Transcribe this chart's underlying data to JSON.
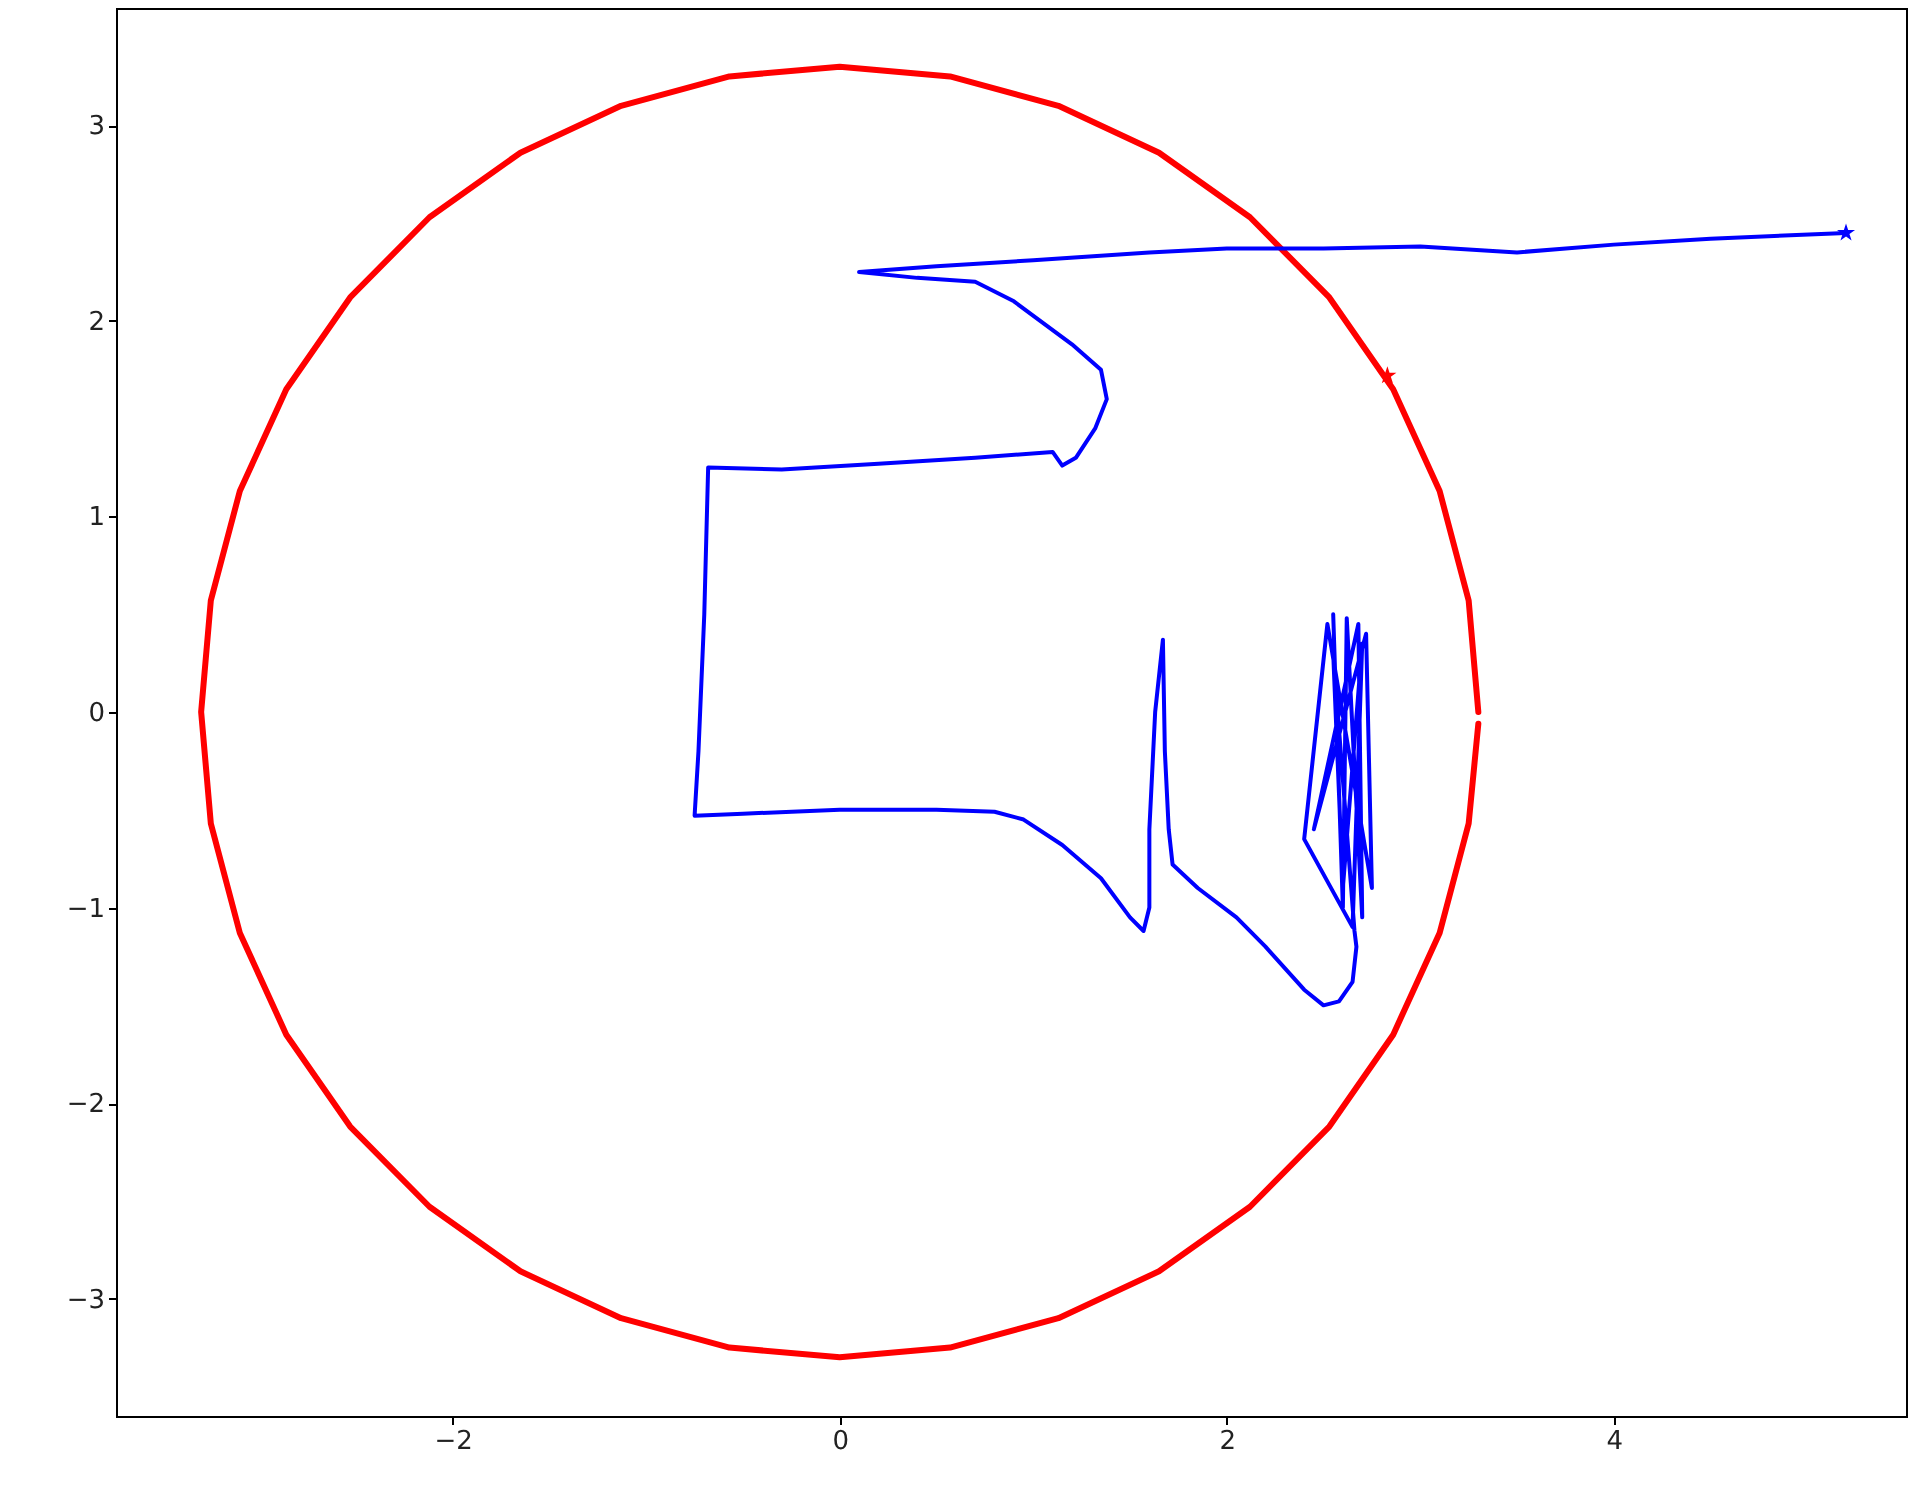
{
  "chart_data": {
    "type": "line",
    "xlim": [
      -3.74,
      5.51
    ],
    "ylim": [
      -3.6,
      3.6
    ],
    "xticks": [
      -2,
      0,
      2,
      4
    ],
    "yticks": [
      -3,
      -2,
      -1,
      0,
      1,
      2,
      3
    ],
    "line_style": "solid",
    "series": [
      {
        "type": "line",
        "color": "#ff0000",
        "marker": "none",
        "x": [
          3.3,
          3.25,
          3.1,
          2.86,
          2.53,
          2.12,
          1.65,
          1.13,
          0.57,
          0,
          -0.57,
          -1.13,
          -1.65,
          -2.12,
          -2.53,
          -2.86,
          -3.1,
          -3.25,
          -3.3,
          -3.25,
          -3.1,
          -2.86,
          -2.53,
          -2.12,
          -1.65,
          -1.13,
          -0.57,
          0,
          0.57,
          1.13,
          1.65,
          2.12,
          2.53,
          2.86,
          3.1,
          3.25,
          3.3
        ],
        "values": [
          0,
          0.57,
          1.13,
          1.65,
          2.12,
          2.53,
          2.86,
          3.1,
          3.25,
          3.3,
          3.25,
          3.1,
          2.86,
          2.53,
          2.12,
          1.65,
          1.13,
          0.57,
          0,
          -0.57,
          -1.13,
          -1.65,
          -2.12,
          -2.53,
          -2.86,
          -3.1,
          -3.25,
          -3.3,
          -3.25,
          -3.1,
          -2.86,
          -2.53,
          -2.12,
          -1.65,
          -1.13,
          -0.57,
          -0.06
        ]
      },
      {
        "type": "line",
        "color": "#0000ff",
        "marker": "none",
        "x": [
          2.55,
          2.6,
          2.62,
          2.7,
          2.68,
          2.45,
          2.72,
          2.75,
          2.52,
          2.4,
          2.65,
          2.7,
          2.6,
          2.55,
          2.66,
          2.67,
          2.65,
          2.58,
          2.5,
          2.4,
          2.2,
          2.05,
          1.85,
          1.72,
          1.7,
          1.68,
          1.67,
          1.63,
          1.6,
          1.6,
          1.57,
          1.5,
          1.35,
          1.15,
          0.95,
          0.8,
          0.5,
          0,
          -0.5,
          -0.75,
          -0.73,
          -0.7,
          -0.68,
          -0.3,
          0.2,
          0.7,
          1.1,
          1.15,
          1.22,
          1.32,
          1.38,
          1.35,
          1.2,
          0.9,
          0.7,
          0.4,
          0.1,
          0.5,
          1,
          1.6,
          2,
          2.5,
          3,
          3.5,
          4,
          4.5,
          5.2
        ],
        "values": [
          0.5,
          -1,
          0.48,
          -1.05,
          0.45,
          -0.6,
          0.4,
          -0.9,
          0.45,
          -0.65,
          -1.1,
          0.35,
          -0.9,
          0.3,
          -1.12,
          -1.2,
          -1.38,
          -1.48,
          -1.5,
          -1.42,
          -1.2,
          -1.05,
          -0.9,
          -0.78,
          -0.6,
          -0.2,
          0.37,
          0,
          -0.6,
          -1,
          -1.12,
          -1.05,
          -0.85,
          -0.68,
          -0.55,
          -0.51,
          -0.5,
          -0.5,
          -0.52,
          -0.53,
          -0.2,
          0.5,
          1.25,
          1.24,
          1.27,
          1.3,
          1.33,
          1.26,
          1.3,
          1.45,
          1.6,
          1.75,
          1.88,
          2.1,
          2.2,
          2.22,
          2.25,
          2.28,
          2.31,
          2.35,
          2.37,
          2.37,
          2.38,
          2.35,
          2.39,
          2.42,
          2.45
        ]
      },
      {
        "type": "scatter",
        "color": "#0000ff",
        "marker": "star",
        "x": [
          5.2
        ],
        "values": [
          2.45
        ]
      },
      {
        "type": "scatter",
        "color": "#ff0000",
        "marker": "star",
        "x": [
          2.83
        ],
        "values": [
          1.72
        ]
      }
    ]
  }
}
